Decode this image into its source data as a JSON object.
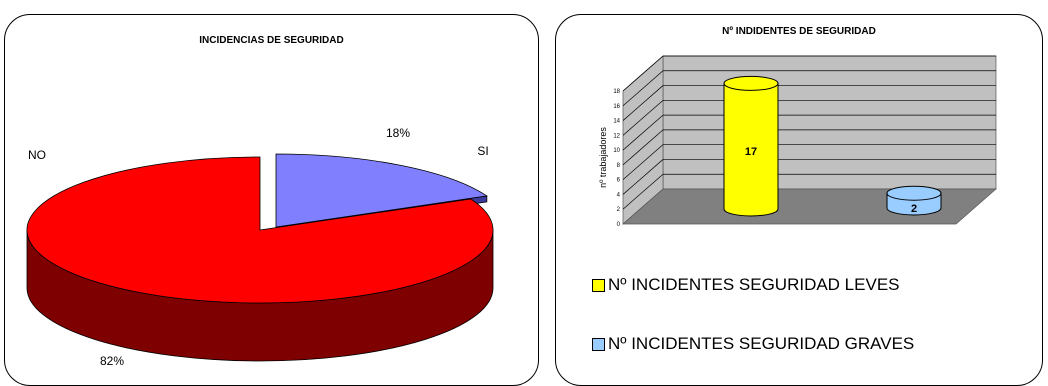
{
  "chart_data": [
    {
      "type": "pie",
      "title": "INCIDENCIAS DE SEGURIDAD",
      "slices": [
        {
          "label": "NO",
          "value": 82,
          "percent_label": "82%",
          "color": "#FF0000",
          "side_color": "#7F0000"
        },
        {
          "label": "SI",
          "value": 18,
          "percent_label": "18%",
          "color": "#8080FF",
          "side_color": "#3A3A9C"
        }
      ],
      "style": "3d-exploded"
    },
    {
      "type": "bar",
      "title": "Nº INDIDENTES DE SEGURIDAD",
      "ylabel": "nº trabajadores",
      "ylim": [
        0,
        18
      ],
      "yticks": [
        "0",
        "2",
        "4",
        "6",
        "8",
        "10",
        "12",
        "14",
        "16",
        "18"
      ],
      "series": [
        {
          "name": "Nº INCIDENTES SEGURIDAD LEVES",
          "value": 17,
          "label": "17",
          "color": "#FFFF00"
        },
        {
          "name": "Nº INCIDENTES SEGURIDAD GRAVES",
          "value": 2,
          "label": "2",
          "color": "#99CCFF"
        }
      ],
      "grid": true,
      "legend_position": "bottom",
      "style": "3d-cylinder"
    }
  ]
}
